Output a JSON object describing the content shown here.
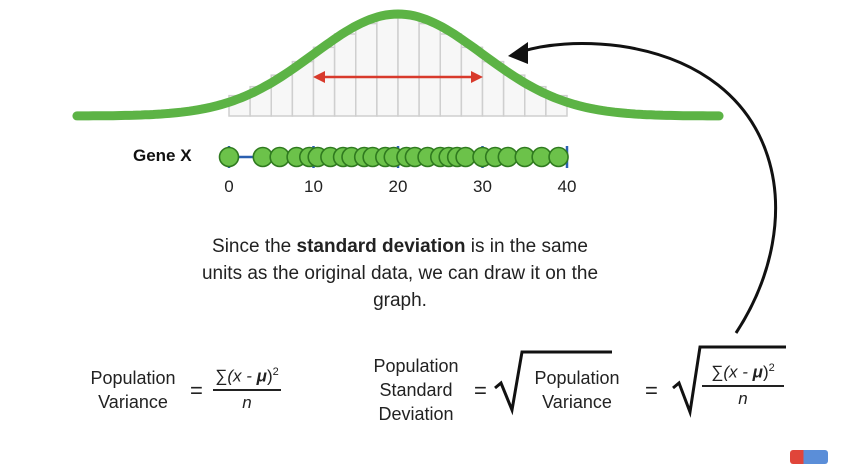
{
  "gene_label": "Gene X",
  "axis": {
    "min": 0,
    "max": 40,
    "ticks": [
      "0",
      "10",
      "20",
      "30",
      "40"
    ]
  },
  "data_points": [
    0,
    4,
    6,
    8,
    9.5,
    10.5,
    12,
    13.5,
    14.5,
    16,
    17,
    18.5,
    19.5,
    21,
    22,
    23.5,
    25,
    26,
    27,
    28,
    30,
    31.5,
    33,
    35,
    37,
    39
  ],
  "distribution": {
    "mean": 20,
    "sd": 10,
    "xmin": -18,
    "xmax": 58
  },
  "caption": {
    "part1": "Since the ",
    "bold": "standard deviation",
    "part2": " is in the same units as the original data, we can draw it on the graph."
  },
  "formulas": {
    "pop_variance_label_1": "Population",
    "pop_variance_label_2": "Variance",
    "variance_num_sigma": "∑",
    "variance_num_body": "(x - ",
    "variance_num_mu": "μ",
    "variance_num_end": ")",
    "variance_num_sup": "2",
    "variance_den": "n",
    "sd_label_1": "Population",
    "sd_label_2": "Standard",
    "sd_label_3": "Deviation",
    "equals": "=",
    "sqrt_label_1": "Population",
    "sqrt_label_2": "Variance"
  },
  "colors": {
    "curve": "#5cb345",
    "point_fill": "#6cc24a",
    "point_stroke": "#2f7a1f",
    "axis": "#2a5fb0",
    "arrow_red": "#d83a2c",
    "histogram": "#cfcfcf",
    "histogram_fill": "#f7f7f7"
  }
}
